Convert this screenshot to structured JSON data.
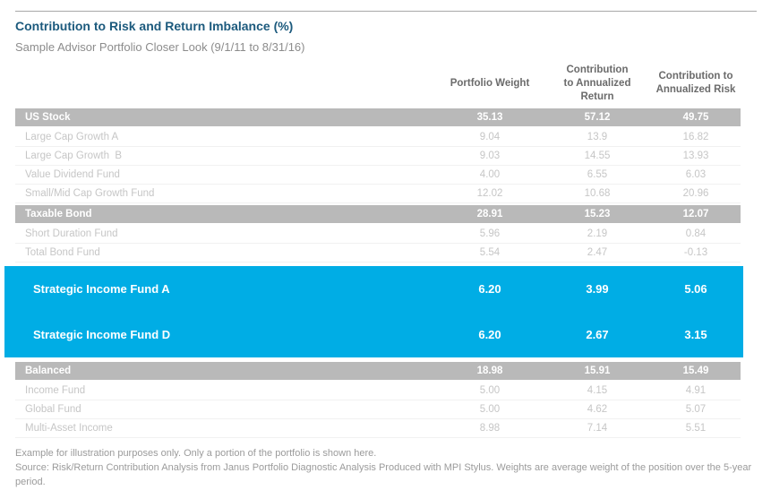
{
  "title": "Contribution to Risk and Return Imbalance (%)",
  "subtitle": "Sample Advisor Portfolio Closer Look (9/1/11 to 8/31/16)",
  "colors": {
    "title_blue": "#1c5a7d",
    "section_gray": "#b9b9b9",
    "highlight_cyan": "#00ade5",
    "fund_text_gray": "#c6c6c6"
  },
  "table": {
    "columns": [
      "Portfolio Weight",
      "Contribution\nto Annualized\nReturn",
      "Contribution to\nAnnualized Risk"
    ],
    "rows": [
      {
        "type": "section",
        "label": "US Stock",
        "weight": "35.13",
        "return": "57.12",
        "risk": "49.75"
      },
      {
        "type": "fund",
        "label": "Large Cap Growth A",
        "weight": "9.04",
        "return": "13.9",
        "risk": "16.82"
      },
      {
        "type": "fund",
        "label": "Large Cap Growth  B",
        "weight": "9.03",
        "return": "14.55",
        "risk": "13.93"
      },
      {
        "type": "fund",
        "label": "Value Dividend Fund",
        "weight": "4.00",
        "return": "6.55",
        "risk": "6.03"
      },
      {
        "type": "fund",
        "label": "Small/Mid Cap Growth Fund",
        "weight": "12.02",
        "return": "10.68",
        "risk": "20.96"
      },
      {
        "type": "section",
        "label": "Taxable Bond",
        "weight": "28.91",
        "return": "15.23",
        "risk": "12.07"
      },
      {
        "type": "fund",
        "label": "Short Duration Fund",
        "weight": "5.96",
        "return": "2.19",
        "risk": "0.84"
      },
      {
        "type": "fund",
        "label": "Total Bond Fund",
        "weight": "5.54",
        "return": "2.47",
        "risk": "-0.13"
      },
      {
        "type": "highlight",
        "label": "Strategic Income Fund A",
        "weight": "6.20",
        "return": "3.99",
        "risk": "5.06"
      },
      {
        "type": "highlight",
        "label": "Strategic Income Fund D",
        "weight": "6.20",
        "return": "2.67",
        "risk": "3.15"
      },
      {
        "type": "section",
        "label": "Balanced",
        "weight": "18.98",
        "return": "15.91",
        "risk": "15.49"
      },
      {
        "type": "fund",
        "label": "Income Fund",
        "weight": "5.00",
        "return": "4.15",
        "risk": "4.91"
      },
      {
        "type": "fund",
        "label": "Global Fund",
        "weight": "5.00",
        "return": "4.62",
        "risk": "5.07"
      },
      {
        "type": "fund",
        "label": "Multi-Asset Income",
        "weight": "8.98",
        "return": "7.14",
        "risk": "5.51"
      }
    ]
  },
  "footnotes": {
    "example": "Example for illustration purposes only. Only a portion of the portfolio is shown here.",
    "source": "Source: Risk/Return Contribution Analysis from Janus Portfolio Diagnostic Analysis Produced with MPI Stylus. Weights are average weight of the position over the 5-year period."
  }
}
